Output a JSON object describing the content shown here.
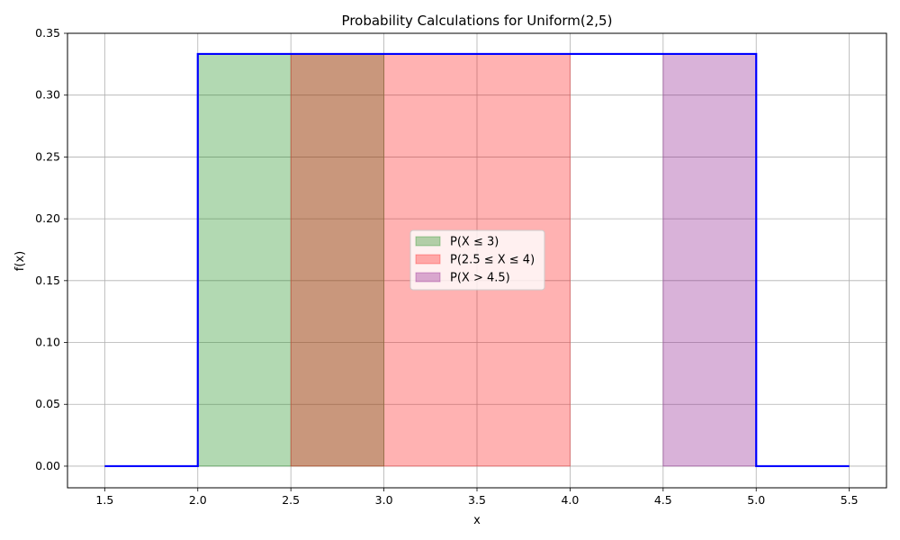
{
  "chart_data": {
    "type": "area",
    "title": "Probability Calculations for Uniform(2,5)",
    "xlabel": "x",
    "ylabel": "f(x)",
    "xlim": [
      1.3,
      5.7
    ],
    "ylim": [
      -0.0175,
      0.35
    ],
    "xticks": [
      "1.5",
      "2.0",
      "2.5",
      "3.0",
      "3.5",
      "4.0",
      "4.5",
      "5.0",
      "5.5"
    ],
    "yticks": [
      "0.00",
      "0.05",
      "0.10",
      "0.15",
      "0.20",
      "0.25",
      "0.30",
      "0.35"
    ],
    "grid": true,
    "legend_position": "center",
    "density_line": {
      "color": "#0000ff",
      "x": [
        1.5,
        2.0,
        2.0,
        5.0,
        5.0,
        5.5
      ],
      "y": [
        0,
        0,
        0.3333,
        0.3333,
        0,
        0
      ]
    },
    "shaded_regions": [
      {
        "name": "P(X ≤ 3)",
        "from": 2.0,
        "to": 3.0,
        "height": 0.3333,
        "color": "#008000",
        "alpha": 0.3
      },
      {
        "name": "P(2.5 ≤ X ≤ 4)",
        "from": 2.5,
        "to": 4.0,
        "height": 0.3333,
        "color": "#ff0000",
        "alpha": 0.3
      },
      {
        "name": "P(X > 4.5)",
        "from": 4.5,
        "to": 5.0,
        "height": 0.3333,
        "color": "#800080",
        "alpha": 0.3
      }
    ]
  }
}
